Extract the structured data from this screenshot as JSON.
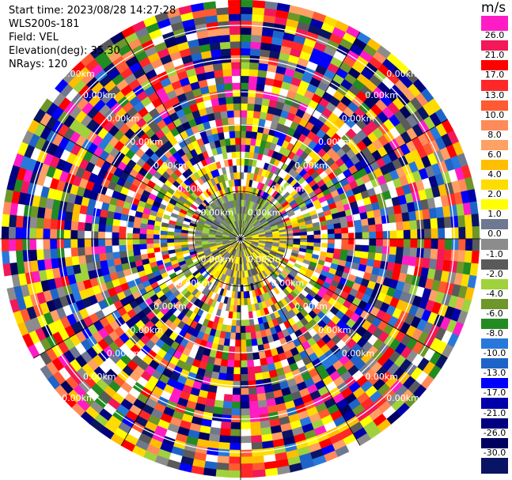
{
  "header": {
    "start_time": "Start time: 2023/08/28 14:27:28",
    "site": "WLS200s-181",
    "field": "Field: VEL",
    "elevation": "Elevation(deg): 35.30",
    "nrays": "NRays: 120"
  },
  "colorbar": {
    "unit": "m/s",
    "ticks": [
      "26.0",
      "21.0",
      "17.0",
      "13.0",
      "10.0",
      "8.0",
      "6.0",
      "4.0",
      "2.0",
      "1.0",
      "0.0",
      "-1.0",
      "-2.0",
      "-4.0",
      "-6.0",
      "-8.0",
      "-10.0",
      "-13.0",
      "-17.0",
      "-21.0",
      "-26.0",
      "-30.0"
    ],
    "colors": [
      "#ff1cc4",
      "#f2185a",
      "#ff0000",
      "#ff2828",
      "#ff5a32",
      "#ff8a5a",
      "#ffa064",
      "#ffbe00",
      "#ffdc00",
      "#ffff00",
      "#6e7890",
      "#8c8c8c",
      "#5a5a5a",
      "#a0d23c",
      "#6e9628",
      "#228b22",
      "#2878dc",
      "#1e64c8",
      "#0000ff",
      "#0000aa",
      "#000080",
      "#000060",
      "#0a1464"
    ]
  },
  "chart_data": {
    "type": "heatmap",
    "projection": "polar PPI",
    "field": "VEL",
    "units": "m/s",
    "n_rays": 120,
    "range_ring_labels": [
      "0.00km",
      "0.00km",
      "0.00km",
      "0.00km",
      "0.00km",
      "0.00km",
      "0.00km"
    ],
    "value_range": [
      -30.0,
      26.0
    ],
    "description_of_pattern": "Inner region near-zero velocities (grey, yellow, light green); outer ranges noisy with all colorbar values"
  }
}
